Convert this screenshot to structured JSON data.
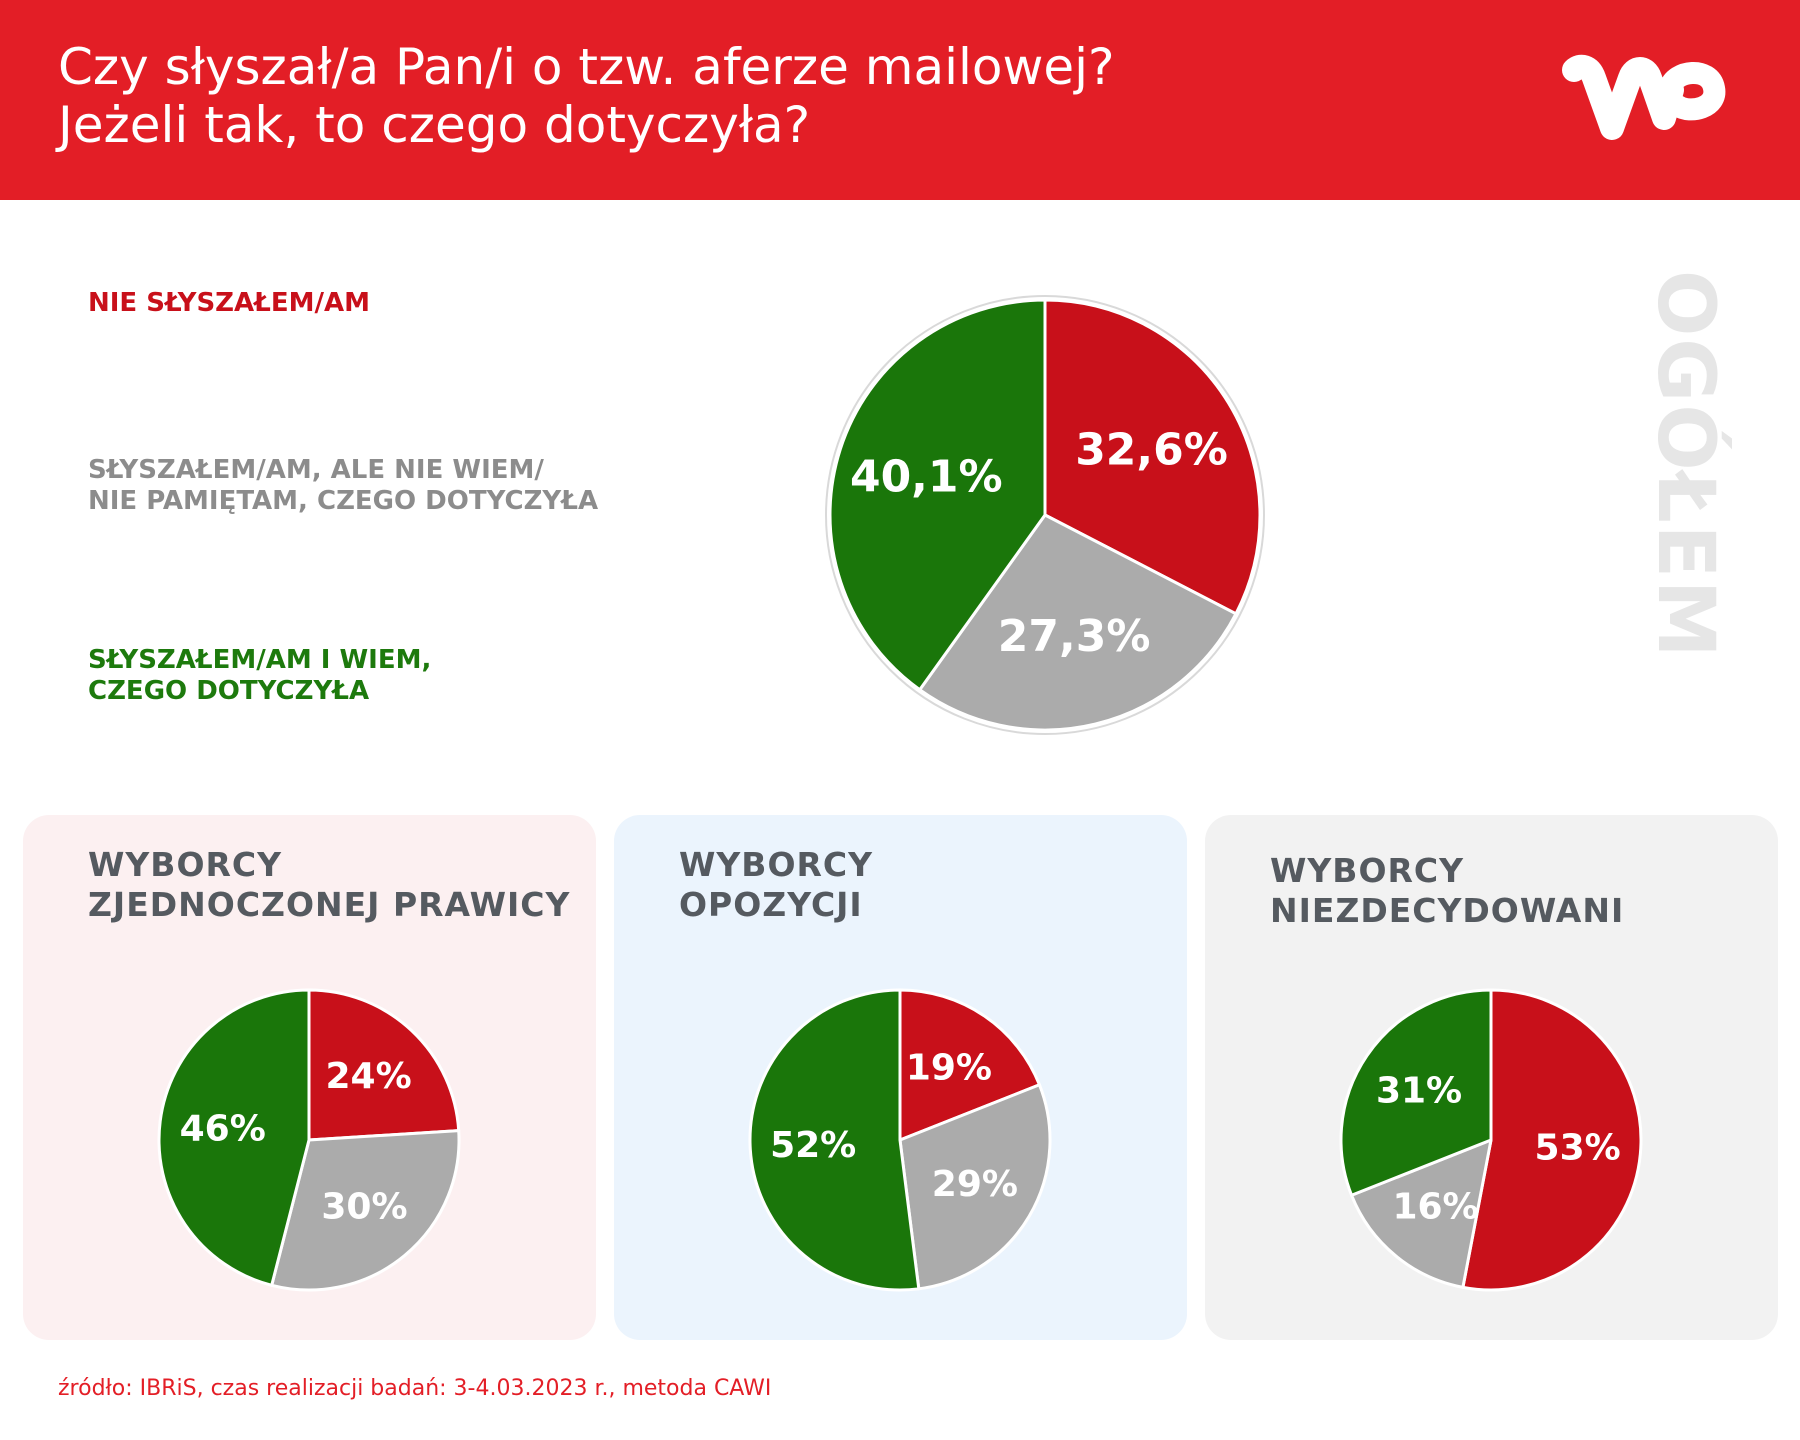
{
  "header": {
    "title_line1": "Czy słyszał/a Pan/i o tzw. aferze mailowej?",
    "title_line2": "Jeżeli tak, to czego dotyczyła?",
    "logo_text": "WP"
  },
  "legend": {
    "red_line1": "NIE SŁYSZAŁEM/AM",
    "gray_line1": "SŁYSZAŁEM/AM, ALE NIE WIEM/",
    "gray_line2": "NIE PAMIĘTAM, CZEGO DOTYCZYŁA",
    "green_line1": "SŁYSZAŁEM/AM I WIEM,",
    "green_line2": "CZEGO DOTYCZYŁA"
  },
  "side_label": "OGÓŁEM",
  "cards": {
    "c1": {
      "line1": "WYBORCY",
      "line2": "ZJEDNOCZONEJ PRAWICY"
    },
    "c2": {
      "line1": "WYBORCY",
      "line2": "OPOZYCJI"
    },
    "c3": {
      "line1": "WYBORCY",
      "line2": "NIEZDECYDOWANI"
    }
  },
  "footer": "źródło: IBRiS, czas realizacji badań: 3-4.03.2023 r., metoda CAWI",
  "colors": {
    "red": "#c8101a",
    "gray": "#ababab",
    "green": "#1a760a",
    "brand": "#e31e26"
  },
  "chart_data": [
    {
      "type": "pie",
      "title": "OGÓŁEM",
      "categories": [
        "NIE SŁYSZAŁEM/AM",
        "SŁYSZAŁEM/AM, ALE NIE WIEM/ NIE PAMIĘTAM, CZEGO DOTYCZYŁA",
        "SŁYSZAŁEM/AM I WIEM, CZEGO DOTYCZYŁA"
      ],
      "values": [
        32.6,
        27.3,
        40.1
      ],
      "labels": [
        "32,6%",
        "27,3%",
        "40,1%"
      ]
    },
    {
      "type": "pie",
      "title": "WYBORCY ZJEDNOCZONEJ PRAWICY",
      "categories": [
        "NIE SŁYSZAŁEM/AM",
        "SŁYSZAŁEM/AM, ALE NIE WIEM/ NIE PAMIĘTAM, CZEGO DOTYCZYŁA",
        "SŁYSZAŁEM/AM I WIEM, CZEGO DOTYCZYŁA"
      ],
      "values": [
        24,
        30,
        46
      ],
      "labels": [
        "24%",
        "30%",
        "46%"
      ]
    },
    {
      "type": "pie",
      "title": "WYBORCY OPOZYCJI",
      "categories": [
        "NIE SŁYSZAŁEM/AM",
        "SŁYSZAŁEM/AM, ALE NIE WIEM/ NIE PAMIĘTAM, CZEGO DOTYCZYŁA",
        "SŁYSZAŁEM/AM I WIEM, CZEGO DOTYCZYŁA"
      ],
      "values": [
        19,
        29,
        52
      ],
      "labels": [
        "19%",
        "29%",
        "52%"
      ]
    },
    {
      "type": "pie",
      "title": "WYBORCY NIEZDECYDOWANI",
      "categories": [
        "NIE SŁYSZAŁEM/AM",
        "SŁYSZAŁEM/AM, ALE NIE WIEM/ NIE PAMIĘTAM, CZEGO DOTYCZYŁA",
        "SŁYSZAŁEM/AM I WIEM, CZEGO DOTYCZYŁA"
      ],
      "values": [
        53,
        16,
        31
      ],
      "labels": [
        "53%",
        "16%",
        "31%"
      ]
    }
  ]
}
